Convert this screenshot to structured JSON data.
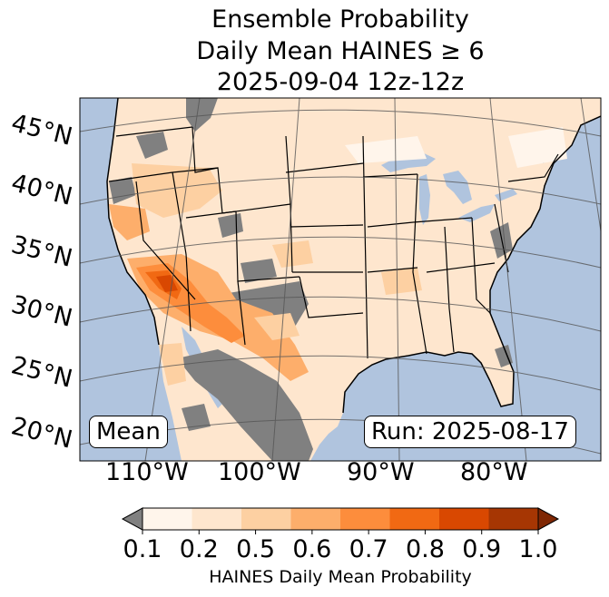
{
  "title": {
    "line1": "Ensemble Probability",
    "line2": "Daily Mean HAINES ≥ 6",
    "line3": "2025-09-04 12z-12z"
  },
  "map_labels": {
    "latitudes": [
      "45°N",
      "40°N",
      "35°N",
      "30°N",
      "25°N",
      "20°N"
    ],
    "longitudes": [
      "110°W",
      "100°W",
      "90°W",
      "80°W"
    ]
  },
  "annotations": {
    "stat": "Mean",
    "run": "Run: 2025-08-17"
  },
  "colorbar": {
    "label": "HAINES Daily Mean Probability",
    "ticks": [
      "0.1",
      "0.2",
      "0.5",
      "0.6",
      "0.7",
      "0.8",
      "0.9",
      "1.0"
    ],
    "colors": [
      "#fff5eb",
      "#fee6ce",
      "#fdd0a2",
      "#fdae6b",
      "#fd8d3c",
      "#f16913",
      "#d94801",
      "#a63603"
    ],
    "under_color": "#808080",
    "over_color": "#7f2704"
  },
  "colors": {
    "ocean": "#b0c4de",
    "no_data": "#808080",
    "land_low": "#fee6ce"
  }
}
